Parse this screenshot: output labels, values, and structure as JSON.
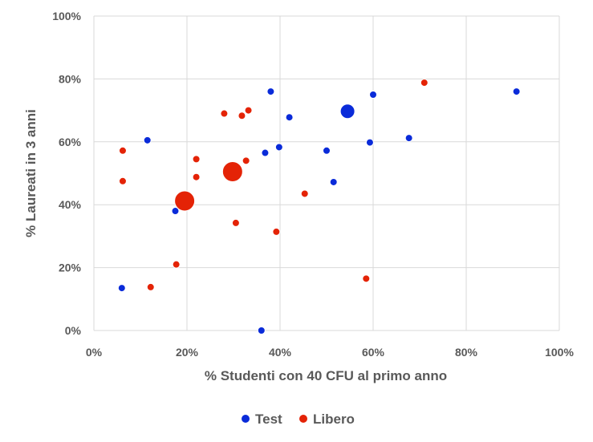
{
  "chart_data": {
    "type": "scatter",
    "xlabel": "% Studenti con 40 CFU al primo anno",
    "ylabel": "% Laureati in 3 anni",
    "xlim": [
      0,
      100
    ],
    "ylim": [
      0,
      100
    ],
    "x_ticks": [
      "0%",
      "20%",
      "40%",
      "60%",
      "80%",
      "100%"
    ],
    "y_ticks": [
      "0%",
      "20%",
      "40%",
      "60%",
      "80%",
      "100%"
    ],
    "grid": true,
    "legend_position": "bottom",
    "series": [
      {
        "name": "Test",
        "color": "#0a2bd9",
        "points": [
          {
            "x": 6,
            "y": 13.5,
            "size": "small"
          },
          {
            "x": 11.5,
            "y": 60.5,
            "size": "small"
          },
          {
            "x": 17.5,
            "y": 38,
            "size": "small"
          },
          {
            "x": 36,
            "y": 0,
            "size": "small"
          },
          {
            "x": 36.8,
            "y": 56.5,
            "size": "small"
          },
          {
            "x": 38,
            "y": 76,
            "size": "small"
          },
          {
            "x": 39.8,
            "y": 58.3,
            "size": "small"
          },
          {
            "x": 42,
            "y": 67.8,
            "size": "small"
          },
          {
            "x": 50,
            "y": 57.2,
            "size": "small"
          },
          {
            "x": 51.5,
            "y": 47.2,
            "size": "small"
          },
          {
            "x": 54.5,
            "y": 69.7,
            "size": "large"
          },
          {
            "x": 59.3,
            "y": 59.8,
            "size": "small"
          },
          {
            "x": 60,
            "y": 75,
            "size": "small"
          },
          {
            "x": 67.7,
            "y": 61.2,
            "size": "small"
          },
          {
            "x": 90.8,
            "y": 76,
            "size": "small"
          }
        ]
      },
      {
        "name": "Libero",
        "color": "#e42306",
        "points": [
          {
            "x": 6.2,
            "y": 57.2,
            "size": "small"
          },
          {
            "x": 6.2,
            "y": 47.5,
            "size": "small"
          },
          {
            "x": 12.2,
            "y": 13.8,
            "size": "small"
          },
          {
            "x": 17.7,
            "y": 21,
            "size": "small"
          },
          {
            "x": 19.5,
            "y": 41.2,
            "size": "xlarge"
          },
          {
            "x": 22,
            "y": 54.5,
            "size": "small"
          },
          {
            "x": 22,
            "y": 48.8,
            "size": "small"
          },
          {
            "x": 28,
            "y": 69,
            "size": "small"
          },
          {
            "x": 29.8,
            "y": 50.5,
            "size": "xlarge"
          },
          {
            "x": 30.5,
            "y": 34.2,
            "size": "small"
          },
          {
            "x": 31.8,
            "y": 68.3,
            "size": "small"
          },
          {
            "x": 32.7,
            "y": 54,
            "size": "small"
          },
          {
            "x": 33.2,
            "y": 70,
            "size": "small"
          },
          {
            "x": 39.2,
            "y": 31.4,
            "size": "small"
          },
          {
            "x": 45.3,
            "y": 43.5,
            "size": "small"
          },
          {
            "x": 58.5,
            "y": 16.5,
            "size": "small"
          },
          {
            "x": 71,
            "y": 78.8,
            "size": "small"
          }
        ]
      }
    ]
  },
  "style": {
    "gridline_color": "#d9d9d9",
    "text_color": "#595959",
    "marker_stroke": "#ffffff"
  }
}
